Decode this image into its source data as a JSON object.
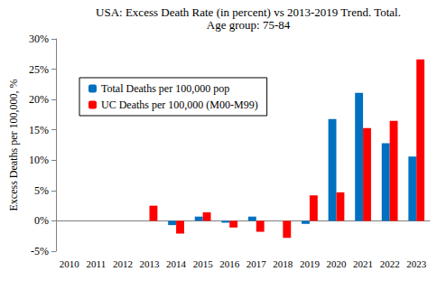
{
  "chart_data": {
    "type": "bar",
    "title": "USA: Excess Death Rate (in percent) vs 2013-2019 Trend. Total.",
    "subtitle": "Age group: 75-84",
    "y_label": "Excess Deaths per 100,000, %",
    "categories": [
      "2010",
      "2011",
      "2012",
      "2013",
      "2014",
      "2015",
      "2016",
      "2017",
      "2018",
      "2019",
      "2020",
      "2021",
      "2022",
      "2023"
    ],
    "series": [
      {
        "name": "Total Deaths per 100,000 pop",
        "color": "#0070c0",
        "values": [
          null,
          null,
          null,
          0,
          -0.7,
          0.7,
          -0.3,
          0.7,
          0,
          -0.5,
          16.8,
          21.1,
          12.8,
          10.6
        ]
      },
      {
        "name": "UC Deaths per 100,000 (M00-M99)",
        "color": "#ff0000",
        "values": [
          null,
          null,
          null,
          2.5,
          -2.1,
          1.4,
          -1.1,
          -1.8,
          -2.8,
          4.2,
          4.7,
          15.3,
          16.5,
          26.6
        ]
      }
    ],
    "ylim": [
      -5,
      30
    ],
    "yticks": [
      {
        "value": -5,
        "label": "-5%"
      },
      {
        "value": 0,
        "label": "0%"
      },
      {
        "value": 5,
        "label": "5%"
      },
      {
        "value": 10,
        "label": "10%"
      },
      {
        "value": 15,
        "label": "15%"
      },
      {
        "value": 20,
        "label": "20%"
      },
      {
        "value": 25,
        "label": "25%"
      },
      {
        "value": 30,
        "label": "30%"
      }
    ],
    "grid": false,
    "legend": "top-left"
  }
}
